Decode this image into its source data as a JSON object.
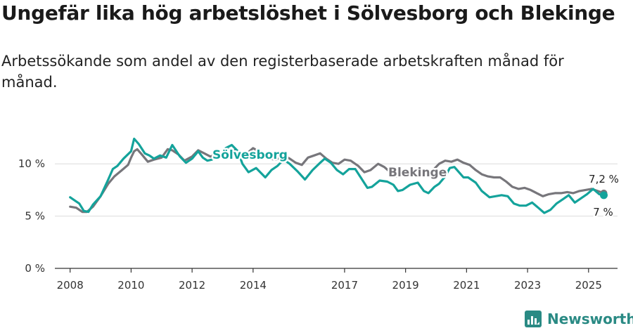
{
  "title": "Ungefär lika hög arbetslöshet i Sölvesborg och Blekinge",
  "subtitle": "Arbetssökande som andel av den registerbaserade arbetskraften månad för månad.",
  "brand": {
    "name": "Newsworthy",
    "icon": "bar-chart-logo-icon",
    "color": "#2a8a84"
  },
  "chart_data": {
    "type": "line",
    "xlim": [
      2007.5,
      2025.95
    ],
    "ylim": [
      0,
      12.5
    ],
    "x_ticks": [
      2008,
      2010,
      2012,
      2014,
      2017,
      2019,
      2021,
      2023,
      2025
    ],
    "x_tick_labels": [
      "2008",
      "2010",
      "2012",
      "2014",
      "2017",
      "2019",
      "2021",
      "2023",
      "2025"
    ],
    "y_ticks": [
      0,
      5,
      10
    ],
    "y_tick_labels": [
      "0 %",
      "5 %",
      "10 %"
    ],
    "grid": true,
    "legend": "inline",
    "series": [
      {
        "name": "Sölvesborg",
        "color": "#14a39b",
        "end_label": "7 %",
        "points": [
          [
            2008.0,
            6.8
          ],
          [
            2008.15,
            6.5
          ],
          [
            2008.3,
            6.2
          ],
          [
            2008.45,
            5.5
          ],
          [
            2008.6,
            5.4
          ],
          [
            2008.75,
            6.1
          ],
          [
            2009.0,
            6.9
          ],
          [
            2009.25,
            8.5
          ],
          [
            2009.4,
            9.5
          ],
          [
            2009.55,
            9.8
          ],
          [
            2009.75,
            10.5
          ],
          [
            2010.0,
            11.2
          ],
          [
            2010.1,
            12.4
          ],
          [
            2010.25,
            11.9
          ],
          [
            2010.45,
            11.0
          ],
          [
            2010.6,
            10.8
          ],
          [
            2010.75,
            10.5
          ],
          [
            2010.95,
            10.8
          ],
          [
            2011.15,
            10.6
          ],
          [
            2011.35,
            11.8
          ],
          [
            2011.6,
            10.7
          ],
          [
            2011.8,
            10.1
          ],
          [
            2012.0,
            10.5
          ],
          [
            2012.2,
            11.2
          ],
          [
            2012.35,
            10.6
          ],
          [
            2012.5,
            10.3
          ],
          [
            2012.65,
            10.4
          ],
          [
            2012.85,
            11.0
          ],
          [
            2013.0,
            10.8
          ],
          [
            2013.1,
            11.5
          ],
          [
            2013.3,
            11.8
          ],
          [
            2013.5,
            11.2
          ],
          [
            2013.65,
            10.0
          ],
          [
            2013.85,
            9.2
          ],
          [
            2014.1,
            9.6
          ],
          [
            2014.4,
            8.7
          ],
          [
            2014.6,
            9.4
          ],
          [
            2014.8,
            9.8
          ],
          [
            2015.0,
            10.4
          ],
          [
            2015.2,
            10.0
          ],
          [
            2015.45,
            9.3
          ],
          [
            2015.7,
            8.5
          ],
          [
            2015.95,
            9.4
          ],
          [
            2016.2,
            10.1
          ],
          [
            2016.35,
            10.5
          ],
          [
            2016.55,
            10.1
          ],
          [
            2016.75,
            9.4
          ],
          [
            2016.95,
            9.0
          ],
          [
            2017.15,
            9.5
          ],
          [
            2017.35,
            9.5
          ],
          [
            2017.55,
            8.6
          ],
          [
            2017.75,
            7.7
          ],
          [
            2017.9,
            7.8
          ],
          [
            2018.15,
            8.4
          ],
          [
            2018.4,
            8.3
          ],
          [
            2018.6,
            8.0
          ],
          [
            2018.75,
            7.4
          ],
          [
            2018.9,
            7.5
          ],
          [
            2019.15,
            8.0
          ],
          [
            2019.4,
            8.2
          ],
          [
            2019.6,
            7.4
          ],
          [
            2019.75,
            7.2
          ],
          [
            2019.95,
            7.8
          ],
          [
            2020.1,
            8.1
          ],
          [
            2020.3,
            8.8
          ],
          [
            2020.45,
            9.6
          ],
          [
            2020.6,
            9.7
          ],
          [
            2020.75,
            9.2
          ],
          [
            2020.9,
            8.7
          ],
          [
            2021.05,
            8.7
          ],
          [
            2021.3,
            8.2
          ],
          [
            2021.5,
            7.4
          ],
          [
            2021.75,
            6.8
          ],
          [
            2021.95,
            6.9
          ],
          [
            2022.15,
            7.0
          ],
          [
            2022.35,
            6.9
          ],
          [
            2022.55,
            6.2
          ],
          [
            2022.75,
            6.0
          ],
          [
            2022.95,
            6.0
          ],
          [
            2023.15,
            6.3
          ],
          [
            2023.35,
            5.8
          ],
          [
            2023.55,
            5.3
          ],
          [
            2023.75,
            5.6
          ],
          [
            2023.95,
            6.2
          ],
          [
            2024.15,
            6.6
          ],
          [
            2024.35,
            7.0
          ],
          [
            2024.55,
            6.3
          ],
          [
            2024.75,
            6.7
          ],
          [
            2024.95,
            7.1
          ],
          [
            2025.15,
            7.6
          ],
          [
            2025.35,
            7.1
          ],
          [
            2025.5,
            7.0
          ]
        ]
      },
      {
        "name": "Blekinge",
        "color": "#77767b",
        "end_label": "7,2 %",
        "points": [
          [
            2008.0,
            5.9
          ],
          [
            2008.2,
            5.8
          ],
          [
            2008.4,
            5.4
          ],
          [
            2008.55,
            5.4
          ],
          [
            2008.75,
            5.9
          ],
          [
            2009.0,
            6.9
          ],
          [
            2009.25,
            8.1
          ],
          [
            2009.45,
            8.8
          ],
          [
            2009.7,
            9.4
          ],
          [
            2009.9,
            9.9
          ],
          [
            2010.0,
            10.6
          ],
          [
            2010.1,
            11.2
          ],
          [
            2010.2,
            11.4
          ],
          [
            2010.35,
            10.9
          ],
          [
            2010.55,
            10.2
          ],
          [
            2010.75,
            10.4
          ],
          [
            2011.0,
            10.6
          ],
          [
            2011.2,
            11.4
          ],
          [
            2011.35,
            11.3
          ],
          [
            2011.55,
            10.9
          ],
          [
            2011.75,
            10.3
          ],
          [
            2012.0,
            10.7
          ],
          [
            2012.2,
            11.3
          ],
          [
            2012.4,
            11.0
          ],
          [
            2012.6,
            10.7
          ],
          [
            2012.8,
            10.9
          ],
          [
            2013.0,
            11.0
          ],
          [
            2013.2,
            11.4
          ],
          [
            2013.4,
            11.3
          ],
          [
            2013.6,
            10.8
          ],
          [
            2013.8,
            11.0
          ],
          [
            2014.0,
            11.5
          ],
          [
            2014.25,
            11.1
          ],
          [
            2014.5,
            10.5
          ],
          [
            2014.75,
            10.4
          ],
          [
            2015.0,
            10.8
          ],
          [
            2015.2,
            10.5
          ],
          [
            2015.4,
            10.1
          ],
          [
            2015.6,
            9.9
          ],
          [
            2015.8,
            10.6
          ],
          [
            2016.0,
            10.8
          ],
          [
            2016.2,
            11.0
          ],
          [
            2016.4,
            10.5
          ],
          [
            2016.6,
            10.1
          ],
          [
            2016.8,
            10.0
          ],
          [
            2017.0,
            10.4
          ],
          [
            2017.2,
            10.3
          ],
          [
            2017.45,
            9.8
          ],
          [
            2017.65,
            9.2
          ],
          [
            2017.85,
            9.4
          ],
          [
            2018.1,
            10.0
          ],
          [
            2018.3,
            9.7
          ],
          [
            2018.5,
            9.2
          ],
          [
            2018.7,
            8.8
          ],
          [
            2018.9,
            9.0
          ],
          [
            2019.1,
            9.4
          ],
          [
            2019.3,
            9.5
          ],
          [
            2019.5,
            9.2
          ],
          [
            2019.7,
            9.0
          ],
          [
            2019.9,
            9.4
          ],
          [
            2020.1,
            10.0
          ],
          [
            2020.3,
            10.3
          ],
          [
            2020.5,
            10.2
          ],
          [
            2020.7,
            10.4
          ],
          [
            2020.9,
            10.1
          ],
          [
            2021.1,
            9.9
          ],
          [
            2021.3,
            9.4
          ],
          [
            2021.5,
            9.0
          ],
          [
            2021.7,
            8.8
          ],
          [
            2021.9,
            8.7
          ],
          [
            2022.1,
            8.7
          ],
          [
            2022.3,
            8.3
          ],
          [
            2022.5,
            7.8
          ],
          [
            2022.7,
            7.6
          ],
          [
            2022.9,
            7.7
          ],
          [
            2023.1,
            7.5
          ],
          [
            2023.3,
            7.2
          ],
          [
            2023.5,
            6.9
          ],
          [
            2023.7,
            7.1
          ],
          [
            2023.9,
            7.2
          ],
          [
            2024.1,
            7.2
          ],
          [
            2024.3,
            7.3
          ],
          [
            2024.5,
            7.2
          ],
          [
            2024.7,
            7.4
          ],
          [
            2024.9,
            7.5
          ],
          [
            2025.1,
            7.6
          ],
          [
            2025.3,
            7.4
          ],
          [
            2025.5,
            7.2
          ]
        ]
      }
    ]
  }
}
